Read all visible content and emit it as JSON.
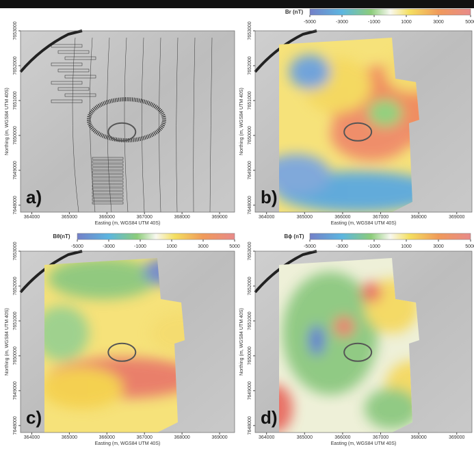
{
  "panels": [
    {
      "label": "a)",
      "xlabel": "Easting (m, WGS84 UTM 40S)",
      "ylabel": "Northing (m, WGS84 UTM 40S)",
      "xlim": [
        363700,
        369400
      ],
      "ylim": [
        7647800,
        7653000
      ],
      "xticks": [
        364000,
        365000,
        366000,
        367000,
        368000,
        369000
      ],
      "yticks": [
        7648000,
        7649000,
        7650000,
        7651000,
        7652000,
        7653000
      ]
    },
    {
      "label": "b)",
      "xlabel": "Easting (m, WGS84 UTM 40S)",
      "ylabel": "Northing (m, WGS84 UTM 40S)",
      "xlim": [
        363700,
        369400
      ],
      "ylim": [
        7647800,
        7653000
      ],
      "xticks": [
        364000,
        365000,
        366000,
        367000,
        368000,
        369000
      ],
      "yticks": [
        7648000,
        7649000,
        7650000,
        7651000,
        7652000,
        7653000
      ],
      "colorbar": {
        "title": "Br (nT)",
        "lim": [
          -5000,
          5000
        ],
        "ticks": [
          -5000,
          -3000,
          -1000,
          1000,
          3000,
          5000
        ]
      }
    },
    {
      "label": "c)",
      "xlabel": "Easting (m, WGS84 UTM 40S)",
      "ylabel": "Northing (m, WGS84 UTM 40S)",
      "xlim": [
        363700,
        369400
      ],
      "ylim": [
        7647800,
        7653000
      ],
      "xticks": [
        364000,
        365000,
        366000,
        367000,
        368000,
        369000
      ],
      "yticks": [
        7648000,
        7649000,
        7650000,
        7651000,
        7652000,
        7653000
      ],
      "colorbar": {
        "title": "Bθ(nT)",
        "lim": [
          -5000,
          5000
        ],
        "ticks": [
          -5000,
          -3000,
          -1000,
          1000,
          3000,
          5000
        ]
      }
    },
    {
      "label": "d)",
      "xlabel": "Easting (m, WGS84 UTM 40S)",
      "ylabel": "Northing (m, WGS84 UTM 40S)",
      "xlim": [
        363700,
        369400
      ],
      "ylim": [
        7647800,
        7653000
      ],
      "xticks": [
        364000,
        365000,
        366000,
        367000,
        368000,
        369000
      ],
      "yticks": [
        7648000,
        7649000,
        7650000,
        7651000,
        7652000,
        7653000
      ],
      "colorbar": {
        "title": "Bϕ (nT)",
        "lim": [
          -5000,
          5000
        ],
        "ticks": [
          -5000,
          -3000,
          -1000,
          1000,
          3000,
          5000
        ]
      }
    }
  ]
}
